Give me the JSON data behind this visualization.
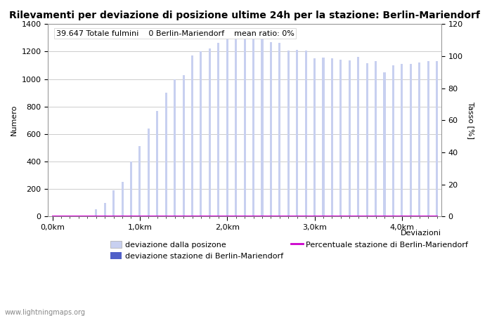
{
  "title": "Rilevamenti per deviazione di posizione ultime 24h per la stazione: Berlin-Mariendorf",
  "annotation": "39.647 Totale fulmini    0 Berlin-Mariendorf    mean ratio: 0%",
  "xlabel": "Deviazioni",
  "ylabel_left": "Numero",
  "ylabel_right": "Tasso [%]",
  "watermark": "www.lightningmaps.org",
  "ylim_left": [
    0,
    1400
  ],
  "ylim_right": [
    0,
    120
  ],
  "xtick_labels": [
    "0,0km",
    "1,0km",
    "2,0km",
    "3,0km",
    "4,0km"
  ],
  "xtick_positions": [
    0,
    10,
    20,
    30,
    40
  ],
  "bar_width": 0.25,
  "bar_values": [
    0,
    0,
    0,
    0,
    0,
    50,
    100,
    190,
    250,
    400,
    510,
    640,
    770,
    900,
    1000,
    1030,
    1170,
    1200,
    1225,
    1265,
    1310,
    1345,
    1300,
    1300,
    1300,
    1270,
    1265,
    1210,
    1215,
    1210,
    1150,
    1155,
    1150,
    1140,
    1135,
    1160,
    1115,
    1130,
    1050,
    1100,
    1110,
    1110,
    1120,
    1130,
    1130
  ],
  "station_values": [
    0,
    0,
    0,
    0,
    0,
    0,
    0,
    0,
    0,
    0,
    0,
    0,
    0,
    0,
    0,
    0,
    0,
    0,
    0,
    0,
    0,
    0,
    0,
    0,
    0,
    0,
    0,
    0,
    0,
    0,
    0,
    0,
    0,
    0,
    0,
    0,
    0,
    0,
    0,
    0,
    0,
    0,
    0,
    0,
    0
  ],
  "ratio_values": [
    0,
    0,
    0,
    0,
    0,
    0,
    0,
    0,
    0,
    0,
    0,
    0,
    0,
    0,
    0,
    0,
    0,
    0,
    0,
    0,
    0,
    0,
    0,
    0,
    0,
    0,
    0,
    0,
    0,
    0,
    0,
    0,
    0,
    0,
    0,
    0,
    0,
    0,
    0,
    0,
    0,
    0,
    0,
    0,
    0
  ],
  "bar_color_light": "#c8d0f0",
  "bar_color_dark": "#5060c8",
  "line_color": "#cc00cc",
  "grid_color": "#cccccc",
  "bg_color": "#ffffff",
  "legend_light_label": "deviazione dalla posizone",
  "legend_dark_label": "deviazione stazione di Berlin-Mariendorf",
  "legend_line_label": "Percentuale stazione di Berlin-Mariendorf",
  "title_fontsize": 10,
  "axis_fontsize": 8,
  "tick_fontsize": 8,
  "annotation_fontsize": 8
}
